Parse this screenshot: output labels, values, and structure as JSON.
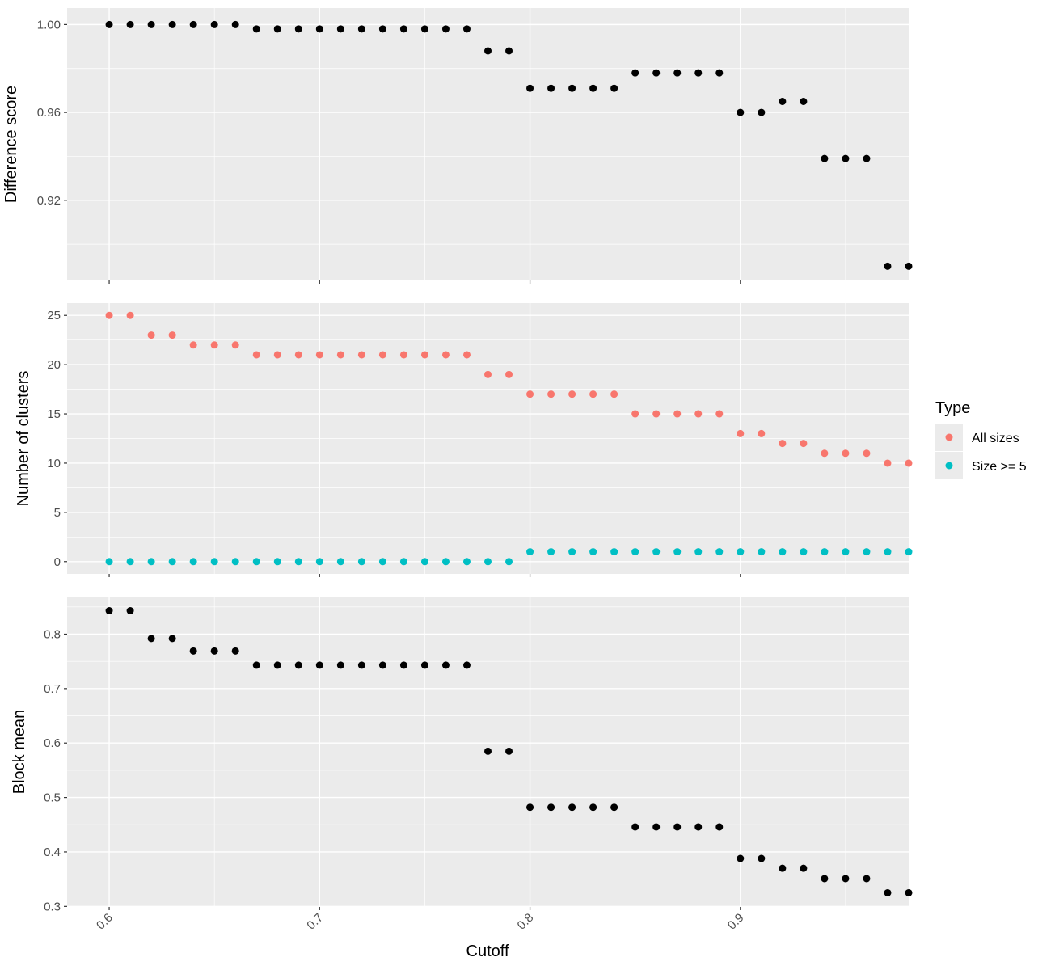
{
  "chart_data": {
    "type": "scatter",
    "x_label": "Cutoff",
    "x_ticks": [
      "0.6",
      "0.7",
      "0.8",
      "0.9"
    ],
    "x_tick_values": [
      0.6,
      0.7,
      0.8,
      0.9
    ],
    "xlim": [
      0.58,
      0.98
    ],
    "x": [
      0.6,
      0.61,
      0.62,
      0.63,
      0.64,
      0.65,
      0.66,
      0.67,
      0.68,
      0.69,
      0.7,
      0.71,
      0.72,
      0.73,
      0.74,
      0.75,
      0.76,
      0.77,
      0.78,
      0.79,
      0.8,
      0.81,
      0.82,
      0.83,
      0.84,
      0.85,
      0.86,
      0.87,
      0.88,
      0.89,
      0.9,
      0.91,
      0.92,
      0.93,
      0.94,
      0.95,
      0.96,
      0.97,
      0.98
    ],
    "legend": {
      "title": "Type",
      "position": "right",
      "items": [
        {
          "label": "All sizes",
          "color": "#F8766D"
        },
        {
          "label": "Size >= 5",
          "color": "#00BFC4"
        }
      ]
    },
    "panels": [
      {
        "ylabel": "Difference score",
        "ylim": [
          0.8835,
          1.0075
        ],
        "y_ticks": [
          "0.92",
          "0.96",
          "1.00"
        ],
        "y_tick_values": [
          0.92,
          0.96,
          1.0
        ],
        "series": [
          {
            "color": "#000000",
            "values": [
              1.0,
              1.0,
              1.0,
              1.0,
              1.0,
              1.0,
              1.0,
              0.998,
              0.998,
              0.998,
              0.998,
              0.998,
              0.998,
              0.998,
              0.998,
              0.998,
              0.998,
              0.998,
              0.988,
              0.988,
              0.971,
              0.971,
              0.971,
              0.971,
              0.971,
              0.978,
              0.978,
              0.978,
              0.978,
              0.978,
              0.96,
              0.96,
              0.965,
              0.965,
              0.939,
              0.939,
              0.939,
              0.89,
              0.89
            ]
          }
        ]
      },
      {
        "ylabel": "Number of clusters",
        "ylim": [
          -1.25,
          26.25
        ],
        "y_ticks": [
          "0",
          "5",
          "10",
          "15",
          "20",
          "25"
        ],
        "y_tick_values": [
          0,
          5,
          10,
          15,
          20,
          25
        ],
        "series": [
          {
            "name": "All sizes",
            "color": "#F8766D",
            "values": [
              25,
              25,
              23,
              23,
              22,
              22,
              22,
              21,
              21,
              21,
              21,
              21,
              21,
              21,
              21,
              21,
              21,
              21,
              19,
              19,
              17,
              17,
              17,
              17,
              17,
              15,
              15,
              15,
              15,
              15,
              13,
              13,
              12,
              12,
              11,
              11,
              11,
              10,
              10
            ]
          },
          {
            "name": "Size >= 5",
            "color": "#00BFC4",
            "values": [
              0,
              0,
              0,
              0,
              0,
              0,
              0,
              0,
              0,
              0,
              0,
              0,
              0,
              0,
              0,
              0,
              0,
              0,
              0,
              0,
              1,
              1,
              1,
              1,
              1,
              1,
              1,
              1,
              1,
              1,
              1,
              1,
              1,
              1,
              1,
              1,
              1,
              1,
              1
            ]
          }
        ]
      },
      {
        "ylabel": "Block mean",
        "ylim": [
          0.299,
          0.869
        ],
        "y_ticks": [
          "0.3",
          "0.4",
          "0.5",
          "0.6",
          "0.7",
          "0.8"
        ],
        "y_tick_values": [
          0.3,
          0.4,
          0.5,
          0.6,
          0.7,
          0.8
        ],
        "series": [
          {
            "color": "#000000",
            "values": [
              0.843,
              0.843,
              0.792,
              0.792,
              0.769,
              0.769,
              0.769,
              0.743,
              0.743,
              0.743,
              0.743,
              0.743,
              0.743,
              0.743,
              0.743,
              0.743,
              0.743,
              0.743,
              0.585,
              0.585,
              0.482,
              0.482,
              0.482,
              0.482,
              0.482,
              0.446,
              0.446,
              0.446,
              0.446,
              0.446,
              0.388,
              0.388,
              0.37,
              0.37,
              0.351,
              0.351,
              0.351,
              0.325,
              0.325
            ]
          }
        ]
      }
    ]
  }
}
